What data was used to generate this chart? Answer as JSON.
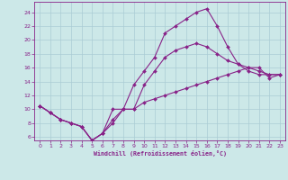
{
  "xlabel": "Windchill (Refroidissement éolien,°C)",
  "bg_color": "#cce8e8",
  "grid_color": "#aaccd4",
  "line_color": "#882288",
  "xlim": [
    -0.5,
    23.5
  ],
  "ylim": [
    5.5,
    25.5
  ],
  "yticks": [
    6,
    8,
    10,
    12,
    14,
    16,
    18,
    20,
    22,
    24
  ],
  "xticks": [
    0,
    1,
    2,
    3,
    4,
    5,
    6,
    7,
    8,
    9,
    10,
    11,
    12,
    13,
    14,
    15,
    16,
    17,
    18,
    19,
    20,
    21,
    22,
    23
  ],
  "line1_x": [
    0,
    1,
    2,
    3,
    4,
    5,
    6,
    7,
    8,
    9,
    10,
    11,
    12,
    13,
    14,
    15,
    16,
    17,
    18,
    19,
    20,
    21,
    22,
    23
  ],
  "line1_y": [
    10.5,
    9.5,
    8.5,
    8.0,
    7.5,
    5.5,
    6.5,
    10.0,
    10.0,
    13.5,
    15.5,
    17.5,
    21.0,
    22.0,
    23.0,
    24.0,
    24.5,
    22.0,
    19.0,
    16.5,
    15.5,
    15.0,
    15.0,
    15.0
  ],
  "line2_x": [
    0,
    1,
    2,
    3,
    4,
    5,
    6,
    7,
    8,
    9,
    10,
    11,
    12,
    13,
    14,
    15,
    16,
    17,
    18,
    19,
    20,
    21,
    22,
    23
  ],
  "line2_y": [
    10.5,
    9.5,
    8.5,
    8.0,
    7.5,
    5.5,
    6.5,
    8.5,
    10.0,
    10.0,
    13.5,
    15.5,
    17.5,
    18.5,
    19.0,
    19.5,
    19.0,
    18.0,
    17.0,
    16.5,
    16.0,
    15.5,
    15.0,
    15.0
  ],
  "line3_x": [
    0,
    1,
    2,
    3,
    4,
    5,
    6,
    7,
    8,
    9,
    10,
    11,
    12,
    13,
    14,
    15,
    16,
    17,
    18,
    19,
    20,
    21,
    22,
    23
  ],
  "line3_y": [
    10.5,
    9.5,
    8.5,
    8.0,
    7.5,
    5.5,
    6.5,
    8.0,
    10.0,
    10.0,
    11.0,
    11.5,
    12.0,
    12.5,
    13.0,
    13.5,
    14.0,
    14.5,
    15.0,
    15.5,
    16.0,
    16.0,
    14.5,
    15.0
  ]
}
